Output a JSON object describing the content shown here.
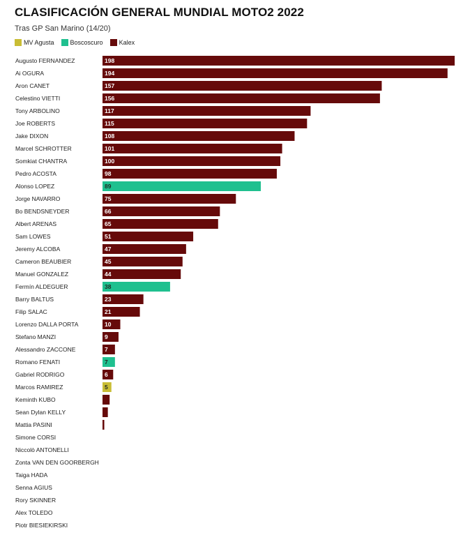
{
  "chart_data": {
    "type": "bar",
    "orientation": "horizontal",
    "title": "CLASIFICACIÓN GENERAL MUNDIAL MOTO2 2022",
    "subtitle": "Tras GP San Marino (14/20)",
    "legend": [
      {
        "name": "MV Agusta",
        "color": "#c9bd35"
      },
      {
        "name": "Boscoscuro",
        "color": "#1fc08f"
      },
      {
        "name": "Kalex",
        "color": "#660a0a"
      }
    ],
    "xlim": [
      0,
      198
    ],
    "grid": false,
    "legend_position": "top-left",
    "categories": [
      "Augusto FERNANDEZ",
      "Ai OGURA",
      "Aron CANET",
      "Celestino VIETTI",
      "Tony ARBOLINO",
      "Joe ROBERTS",
      "Jake DIXON",
      "Marcel SCHROTTER",
      "Somkiat CHANTRA",
      "Pedro ACOSTA",
      "Alonso LOPEZ",
      "Jorge NAVARRO",
      "Bo BENDSNEYDER",
      "Albert ARENAS",
      "Sam LOWES",
      "Jeremy ALCOBA",
      "Cameron BEAUBIER",
      "Manuel GONZALEZ",
      "Fermín ALDEGUER",
      "Barry BALTUS",
      "Filip SALAC",
      "Lorenzo DALLA PORTA",
      "Stefano MANZI",
      "Alessandro ZACCONE",
      "Romano FENATI",
      "Gabriel RODRIGO",
      "Marcos RAMIREZ",
      "Keminth KUBO",
      "Sean Dylan KELLY",
      "Mattia PASINI",
      "Simone CORSI",
      "Niccolò ANTONELLI",
      "Zonta VAN DEN GOORBERGH",
      "Taiga HADA",
      "Senna AGIUS",
      "Rory SKINNER",
      "Alex TOLEDO",
      "Piotr BIESIEKIRSKI"
    ],
    "values": [
      198,
      194,
      157,
      156,
      117,
      115,
      108,
      101,
      100,
      98,
      89,
      75,
      66,
      65,
      51,
      47,
      45,
      44,
      38,
      23,
      21,
      10,
      9,
      7,
      7,
      6,
      5,
      4,
      3,
      1,
      0,
      0,
      0,
      0,
      0,
      0,
      0,
      0
    ],
    "value_labels": [
      "198",
      "194",
      "157",
      "156",
      "117",
      "115",
      "108",
      "101",
      "100",
      "98",
      "89",
      "75",
      "66",
      "65",
      "51",
      "47",
      "45",
      "44",
      "38",
      "23",
      "21",
      "10",
      "9",
      "7",
      "7",
      "6",
      "5",
      "",
      "",
      "",
      "",
      "",
      "",
      "",
      "",
      "",
      "",
      ""
    ],
    "constructors": [
      "Kalex",
      "Kalex",
      "Kalex",
      "Kalex",
      "Kalex",
      "Kalex",
      "Kalex",
      "Kalex",
      "Kalex",
      "Kalex",
      "Boscoscuro",
      "Kalex",
      "Kalex",
      "Kalex",
      "Kalex",
      "Kalex",
      "Kalex",
      "Kalex",
      "Boscoscuro",
      "Kalex",
      "Kalex",
      "Kalex",
      "Kalex",
      "Kalex",
      "Boscoscuro",
      "Kalex",
      "MV Agusta",
      "Kalex",
      "Kalex",
      "Kalex",
      "Kalex",
      "Kalex",
      "Kalex",
      "Kalex",
      "Kalex",
      "Kalex",
      "Kalex",
      "Kalex"
    ]
  }
}
